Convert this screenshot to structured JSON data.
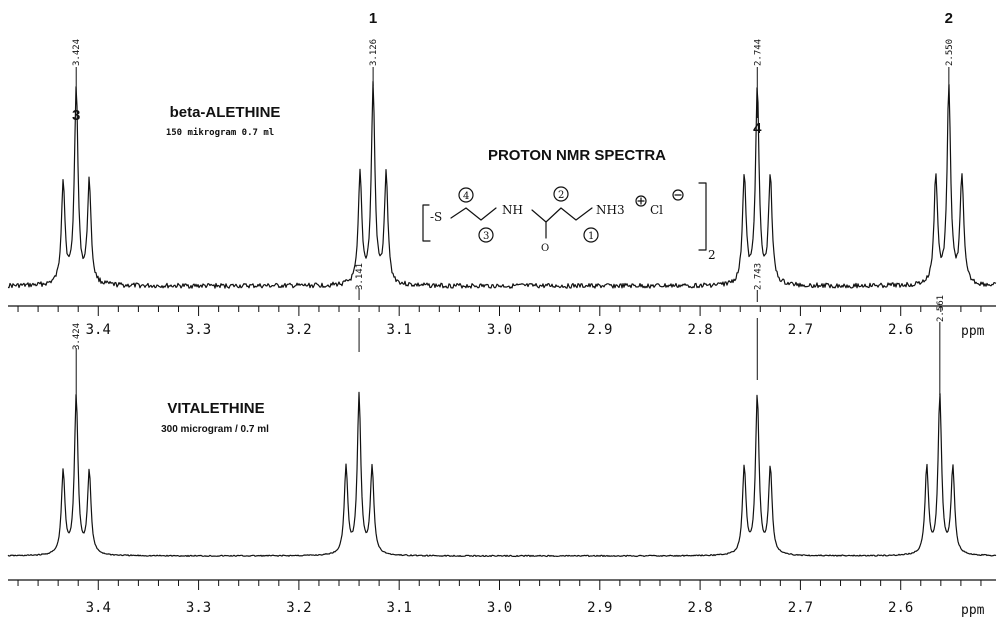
{
  "chart_data": [
    {
      "type": "line",
      "title": "beta-ALETHINE",
      "subtitle": "150 mikrogram 0.7 ml",
      "heading": "PROTON NMR SPECTRA",
      "xlabel": "ppm",
      "xlim": [
        3.49,
        2.505
      ],
      "x_reversed": true,
      "x_ticks": [
        "3.4",
        "3.3",
        "3.2",
        "3.1",
        "3.0",
        "2.9",
        "2.8",
        "2.7",
        "2.6"
      ],
      "grid": false,
      "peak_labels": [
        "3.424",
        "3.126",
        "3.141",
        "2.744",
        "2.743",
        "2.550"
      ],
      "multiplets": [
        {
          "number": "3",
          "center_ppm": 3.422,
          "peaks_ppm": [
            3.435,
            3.422,
            3.409
          ],
          "relative_heights": [
            0.52,
            1.0,
            0.52
          ]
        },
        {
          "number": "1",
          "center_ppm": 3.126,
          "peaks_ppm": [
            3.139,
            3.126,
            3.113
          ],
          "relative_heights": [
            0.55,
            1.0,
            0.55
          ]
        },
        {
          "number": "4",
          "center_ppm": 2.743,
          "peaks_ppm": [
            2.756,
            2.743,
            2.73
          ],
          "relative_heights": [
            0.55,
            1.0,
            0.55
          ]
        },
        {
          "number": "2",
          "center_ppm": 2.552,
          "peaks_ppm": [
            2.565,
            2.552,
            2.539
          ],
          "relative_heights": [
            0.55,
            1.0,
            0.55
          ]
        }
      ],
      "structure": {
        "atoms": [
          "-S",
          "NH",
          "NH3",
          "Cl"
        ],
        "position_labels": [
          "4",
          "3",
          "2",
          "1"
        ],
        "subscript": "2"
      }
    },
    {
      "type": "line",
      "title": "VITALETHINE",
      "subtitle": "300 microgram / 0.7 ml",
      "xlabel": "ppm",
      "xlim": [
        3.49,
        2.505
      ],
      "x_reversed": true,
      "x_ticks": [
        "3.4",
        "3.3",
        "3.2",
        "3.1",
        "3.0",
        "2.9",
        "2.8",
        "2.7",
        "2.6"
      ],
      "grid": false,
      "peak_labels": [
        "3.424",
        "2.561"
      ],
      "multiplets": [
        {
          "center_ppm": 3.422,
          "peaks_ppm": [
            3.435,
            3.422,
            3.409
          ],
          "relative_heights": [
            0.52,
            1.0,
            0.52
          ]
        },
        {
          "center_ppm": 3.14,
          "peaks_ppm": [
            3.153,
            3.14,
            3.127
          ],
          "relative_heights": [
            0.55,
            1.0,
            0.55
          ]
        },
        {
          "center_ppm": 2.743,
          "peaks_ppm": [
            2.756,
            2.743,
            2.73
          ],
          "relative_heights": [
            0.55,
            1.0,
            0.55
          ]
        },
        {
          "center_ppm": 2.561,
          "peaks_ppm": [
            2.574,
            2.561,
            2.548
          ],
          "relative_heights": [
            0.55,
            1.0,
            0.55
          ]
        }
      ]
    }
  ]
}
